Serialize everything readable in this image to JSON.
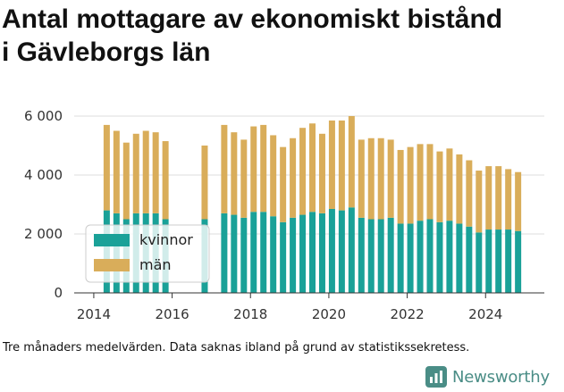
{
  "title_lines": [
    "Antal mottagare av ekonomiskt bistånd",
    "i Gävleborgs län"
  ],
  "caption": "Tre månaders medelvärden. Data saknas ibland på grund av statistikssekretess.",
  "brand": {
    "name": "Newsworthy",
    "color": "#4a8d86",
    "icon": "bar-chart-logo-icon"
  },
  "chart_data": {
    "type": "bar",
    "stacked": true,
    "title": "Antal mottagare av ekonomiskt bistånd i Gävleborgs län",
    "ylim": [
      0,
      6000
    ],
    "y_ticks": [
      0,
      2000,
      4000,
      6000
    ],
    "y_tick_labels": [
      "0",
      "2 000",
      "4 000",
      "6 000"
    ],
    "xlim": [
      2013.5,
      2025.5
    ],
    "x_ticks": [
      2014,
      2016,
      2018,
      2020,
      2022,
      2024
    ],
    "x_tick_labels": [
      "2014",
      "2016",
      "2018",
      "2020",
      "2022",
      "2024"
    ],
    "grid": true,
    "legend_position": "bottom-left",
    "series": [
      {
        "name": "kvinnor",
        "color": "#1aa198"
      },
      {
        "name": "män",
        "color": "#d9ad5a"
      }
    ],
    "points": [
      {
        "x": 2014.33,
        "kvinnor": 2800,
        "total": 5700
      },
      {
        "x": 2014.58,
        "kvinnor": 2700,
        "total": 5500
      },
      {
        "x": 2014.83,
        "kvinnor": 2500,
        "total": 5100
      },
      {
        "x": 2015.08,
        "kvinnor": 2700,
        "total": 5400
      },
      {
        "x": 2015.33,
        "kvinnor": 2700,
        "total": 5500
      },
      {
        "x": 2015.58,
        "kvinnor": 2700,
        "total": 5450
      },
      {
        "x": 2015.83,
        "kvinnor": 2500,
        "total": 5150
      },
      {
        "x": 2016.83,
        "kvinnor": 2500,
        "total": 5000
      },
      {
        "x": 2017.33,
        "kvinnor": 2700,
        "total": 5700
      },
      {
        "x": 2017.58,
        "kvinnor": 2650,
        "total": 5450
      },
      {
        "x": 2017.83,
        "kvinnor": 2550,
        "total": 5200
      },
      {
        "x": 2018.08,
        "kvinnor": 2750,
        "total": 5650
      },
      {
        "x": 2018.33,
        "kvinnor": 2750,
        "total": 5700
      },
      {
        "x": 2018.58,
        "kvinnor": 2600,
        "total": 5350
      },
      {
        "x": 2018.83,
        "kvinnor": 2400,
        "total": 4950
      },
      {
        "x": 2019.08,
        "kvinnor": 2550,
        "total": 5250
      },
      {
        "x": 2019.33,
        "kvinnor": 2650,
        "total": 5600
      },
      {
        "x": 2019.58,
        "kvinnor": 2750,
        "total": 5750
      },
      {
        "x": 2019.83,
        "kvinnor": 2700,
        "total": 5400
      },
      {
        "x": 2020.08,
        "kvinnor": 2850,
        "total": 5850
      },
      {
        "x": 2020.33,
        "kvinnor": 2800,
        "total": 5850
      },
      {
        "x": 2020.58,
        "kvinnor": 2900,
        "total": 6000
      },
      {
        "x": 2020.83,
        "kvinnor": 2550,
        "total": 5200
      },
      {
        "x": 2021.08,
        "kvinnor": 2500,
        "total": 5250
      },
      {
        "x": 2021.33,
        "kvinnor": 2500,
        "total": 5250
      },
      {
        "x": 2021.58,
        "kvinnor": 2550,
        "total": 5200
      },
      {
        "x": 2021.83,
        "kvinnor": 2350,
        "total": 4850
      },
      {
        "x": 2022.08,
        "kvinnor": 2350,
        "total": 4950
      },
      {
        "x": 2022.33,
        "kvinnor": 2450,
        "total": 5050
      },
      {
        "x": 2022.58,
        "kvinnor": 2500,
        "total": 5050
      },
      {
        "x": 2022.83,
        "kvinnor": 2400,
        "total": 4800
      },
      {
        "x": 2023.08,
        "kvinnor": 2450,
        "total": 4900
      },
      {
        "x": 2023.33,
        "kvinnor": 2350,
        "total": 4700
      },
      {
        "x": 2023.58,
        "kvinnor": 2250,
        "total": 4500
      },
      {
        "x": 2023.83,
        "kvinnor": 2050,
        "total": 4150
      },
      {
        "x": 2024.08,
        "kvinnor": 2150,
        "total": 4300
      },
      {
        "x": 2024.33,
        "kvinnor": 2150,
        "total": 4300
      },
      {
        "x": 2024.58,
        "kvinnor": 2150,
        "total": 4200
      },
      {
        "x": 2024.83,
        "kvinnor": 2100,
        "total": 4100
      }
    ]
  }
}
